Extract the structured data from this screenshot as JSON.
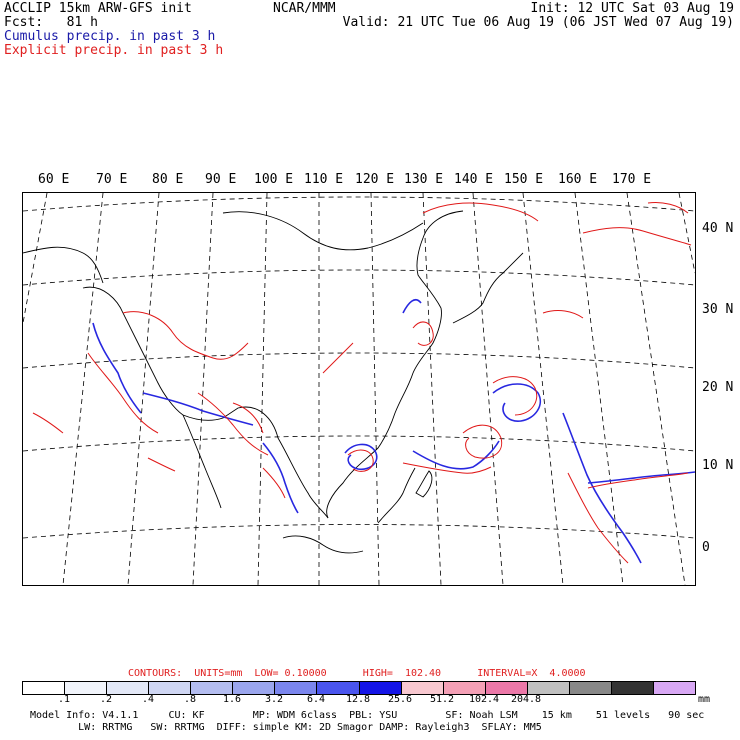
{
  "header": {
    "title": "ACCLIP 15km ARW-GFS init",
    "fcst_label": "Fcst:",
    "fcst_value": "81 h",
    "cumulus": "Cumulus precip. in past 3 h",
    "explicit": "Explicit precip. in past 3 h",
    "center": "NCAR/MMM",
    "init": "Init: 12 UTC Sat 03 Aug 19",
    "valid": "Valid: 21 UTC Tue 06 Aug 19 (06 JST Wed 07 Aug 19)"
  },
  "map": {
    "lon_labels": [
      "60 E",
      "70 E",
      "80 E",
      "90 E",
      "100 E",
      "110 E",
      "120 E",
      "130 E",
      "140 E",
      "150 E",
      "160 E",
      "170 E"
    ],
    "lat_labels": [
      "40 N",
      "30 N",
      "20 N",
      "10 N",
      "0"
    ]
  },
  "contours": "CONTOURS:  UNITS=mm  LOW= 0.10000      HIGH=  102.40      INTERVAL=X  4.0000",
  "colorbar": {
    "colors": [
      "#ffffff",
      "#f1f4fb",
      "#e3e8f7",
      "#cfd6f3",
      "#b4bdf0",
      "#9ba6ee",
      "#7b86ee",
      "#4a55ee",
      "#1414e6",
      "#f8c8d0",
      "#f4a0b6",
      "#ec78a8",
      "#c0c0c0",
      "#888888",
      "#333333",
      "#d8a8f4"
    ],
    "ticks": [
      ".1",
      ".2",
      ".4",
      ".8",
      "1.6",
      "3.2",
      "6.4",
      "12.8",
      "25.6",
      "51.2",
      "102.4",
      "204.8"
    ],
    "units": "mm"
  },
  "model_info": {
    "line1": "Model Info: V4.1.1     CU: KF        MP: WDM 6class  PBL: YSU        SF: Noah LSM    15 km    51 levels   90 sec",
    "line2": "        LW: RRTMG   SW: RRTMG  DIFF: simple KM: 2D Smagor DAMP: Rayleigh3  SFLAY: MM5"
  }
}
